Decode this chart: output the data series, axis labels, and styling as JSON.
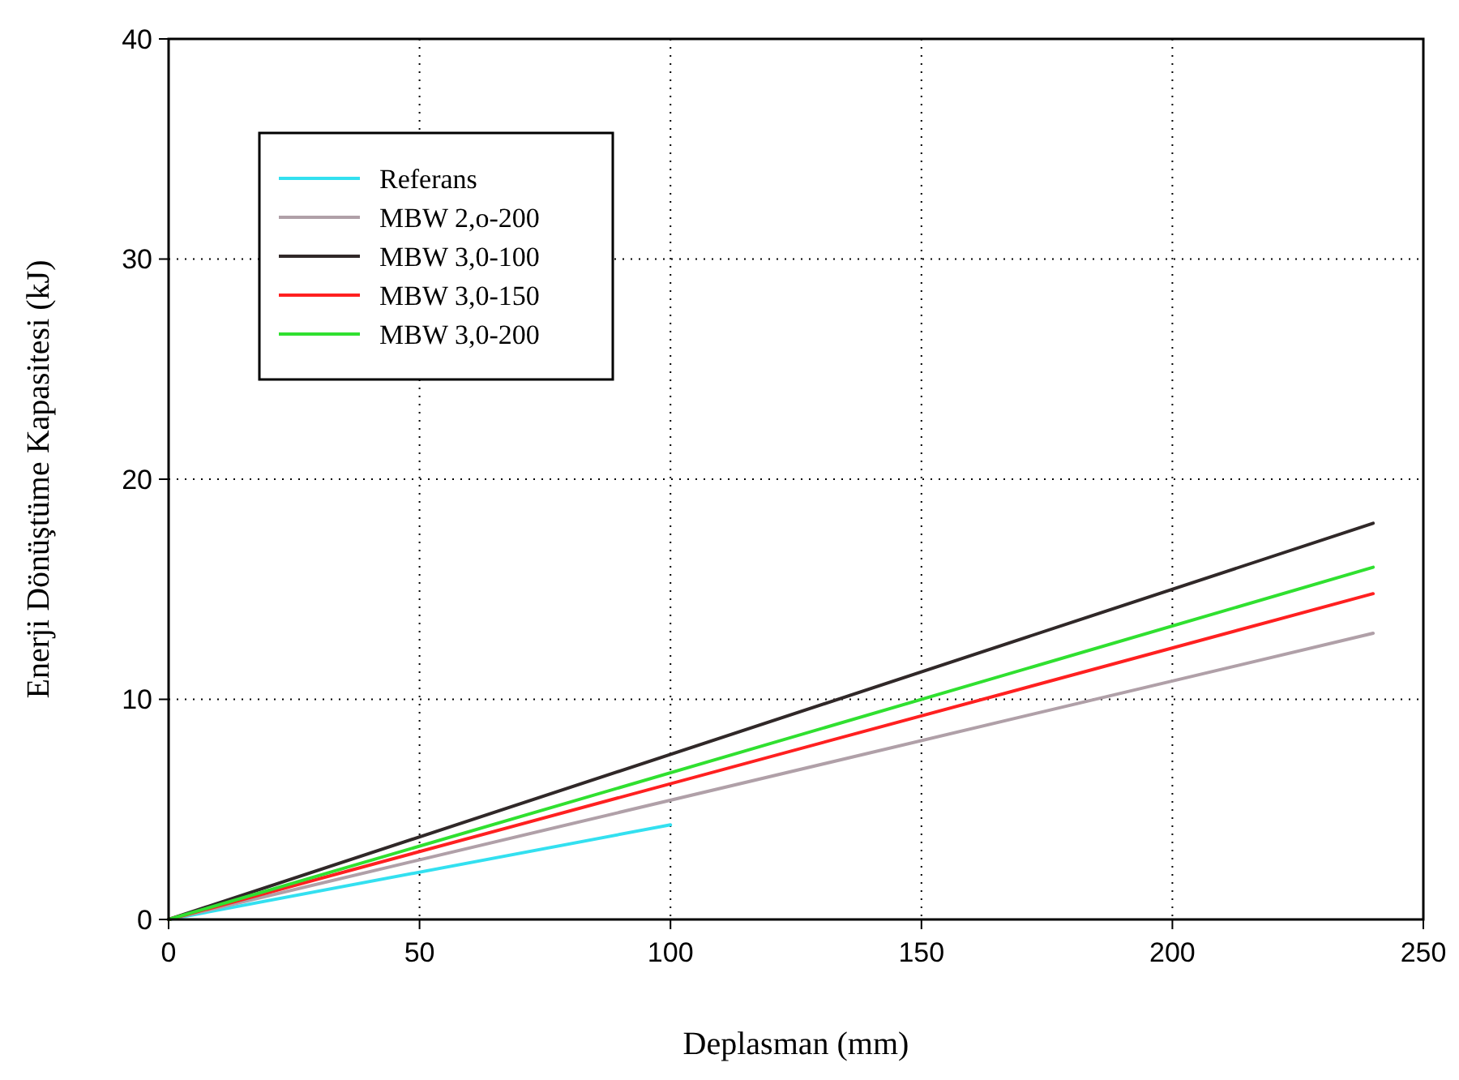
{
  "chart_data": {
    "type": "line",
    "xlabel": "Deplasman (mm)",
    "ylabel": "Enerji Dönüştüme Kapasitesi (kJ)",
    "xlim": [
      0,
      250
    ],
    "xticks": [
      0,
      50,
      100,
      150,
      200,
      250
    ],
    "ylim": [
      0,
      40
    ],
    "yticks": [
      0,
      10,
      20,
      30,
      40
    ],
    "grid": true,
    "legend": "top left",
    "line_style": "solid",
    "series": [
      {
        "name": "Referans",
        "color": "#33e0f0",
        "x": [
          0,
          100
        ],
        "values": [
          0,
          4.3
        ]
      },
      {
        "name": "MBW 2,o-200",
        "color": "#b0a0a8",
        "x": [
          0,
          240
        ],
        "values": [
          0,
          13
        ]
      },
      {
        "name": "MBW 3,0-100",
        "color": "#302828",
        "x": [
          0,
          240
        ],
        "values": [
          0,
          18
        ]
      },
      {
        "name": "MBW 3,0-150",
        "color": "#ff2020",
        "x": [
          0,
          240
        ],
        "values": [
          0,
          14.8
        ]
      },
      {
        "name": "MBW 3,0-200",
        "color": "#30e030",
        "x": [
          0,
          240
        ],
        "values": [
          0,
          16
        ]
      }
    ]
  }
}
